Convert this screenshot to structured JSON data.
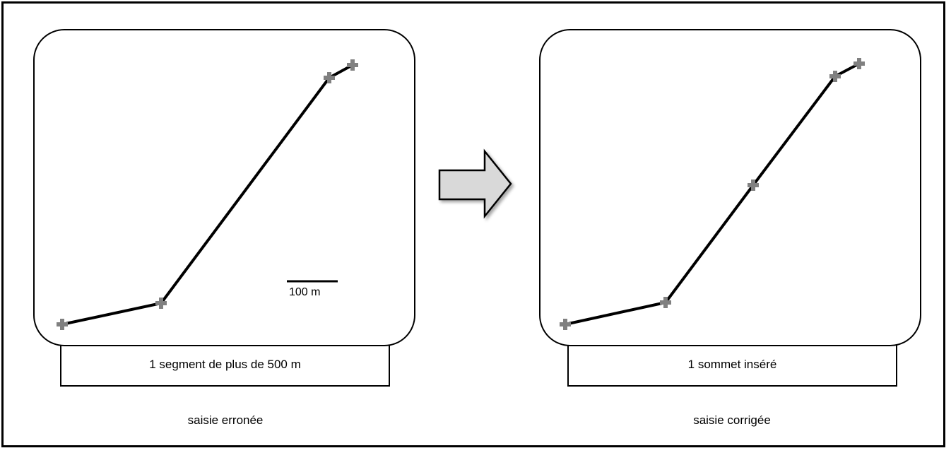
{
  "left": {
    "box_caption": "1 segment de plus de 500 m",
    "label": "saisie erronée",
    "scale_label": "100 m"
  },
  "right": {
    "box_caption": "1 sommet inséré",
    "label": "saisie corrigée"
  },
  "colors": {
    "line": "#000000",
    "vertex": "#808080",
    "arrow_fill": "#d9d9d9"
  }
}
